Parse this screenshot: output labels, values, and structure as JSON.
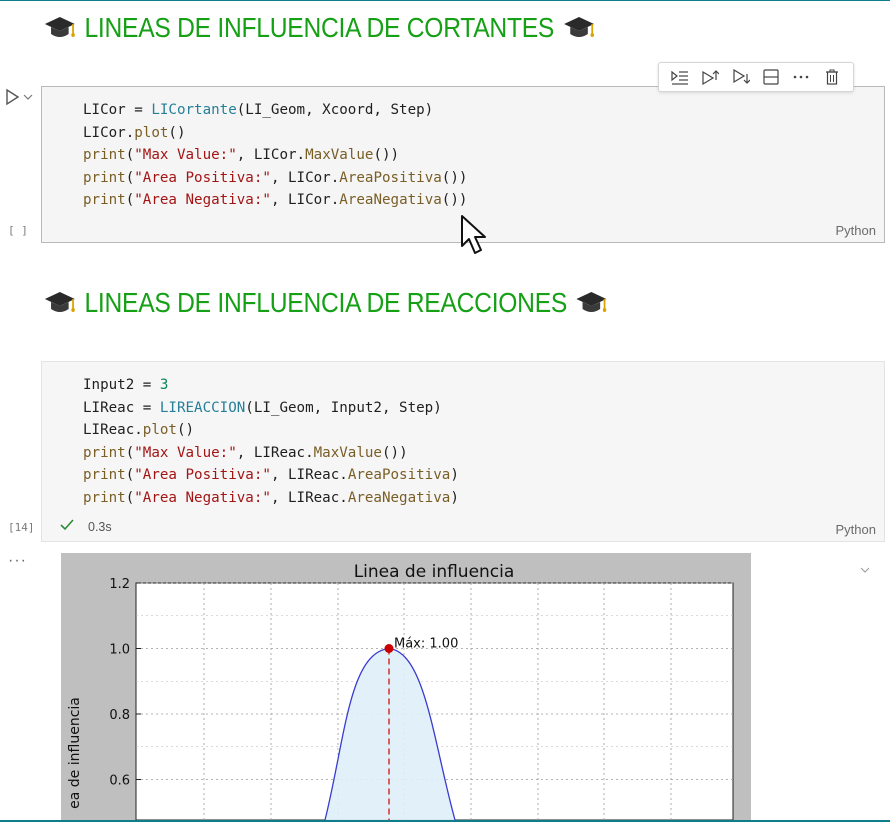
{
  "headings": {
    "cortantes": "LINEAS DE INFLUENCIA DE CORTANTES",
    "reacciones": "LINEAS DE INFLUENCIA DE REACCIONES"
  },
  "cell1": {
    "exec_count": "[ ]",
    "language": "Python",
    "lines": [
      "LICor = LICortante(LI_Geom, Xcoord, Step)",
      "LICor.plot()",
      "print(\"Max Value:\", LICor.MaxValue())",
      "print(\"Area Positiva:\", LICor.AreaPositiva())",
      "print(\"Area Negativa:\", LICor.AreaNegativa())"
    ]
  },
  "cell2": {
    "exec_count": "[14]",
    "language": "Python",
    "duration": "0.3s",
    "lines": [
      "Input2 = 3",
      "LIReac = LIREACCION(LI_Geom, Input2, Step)",
      "LIReac.plot()",
      "print(\"Max Value:\", LIReac.MaxValue())",
      "print(\"Area Positiva:\", LIReac.AreaPositiva)",
      "print(\"Area Negativa:\", LIReac.AreaNegativa)"
    ]
  },
  "output": {
    "more": "···"
  },
  "chart_data": {
    "type": "area",
    "title": "Linea de influencia",
    "ylabel": "ea de influencia",
    "yticks": [
      "1.2",
      "1.0",
      "0.8",
      "0.6"
    ],
    "ytick_values": [
      1.2,
      1.0,
      0.8,
      0.6
    ],
    "grid": true,
    "max_annotation": "Máx: 1.00",
    "max_value": 1.0,
    "line_color": "#3b3bd0",
    "fill_color": "#dff0f8",
    "max_marker_color": "#cc0000"
  },
  "colors": {
    "heading_green": "#16a016",
    "accent_teal": "#0d7e8a"
  },
  "icons": {
    "toolbar": [
      "execute-above-icon",
      "run-above-icon",
      "run-below-icon",
      "split-cell-icon",
      "more-icon",
      "trash-icon"
    ]
  }
}
